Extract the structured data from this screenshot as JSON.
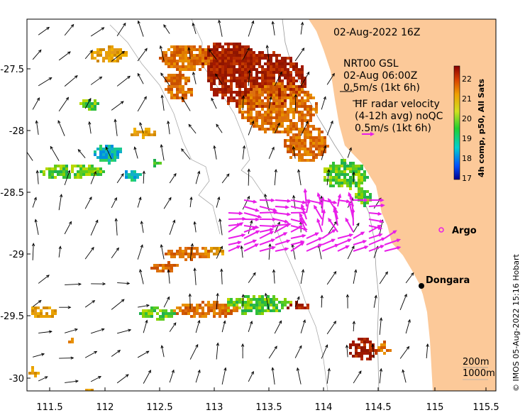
{
  "title": "02-Aug-2022 16Z",
  "gsl_legend": {
    "line1": "NRT00 GSL",
    "line2": "02-Aug 06:00Z",
    "line3": "0.5m/s (1kt 6h)"
  },
  "hf_legend": {
    "line1": "HF radar velocity",
    "line2": "(4-12h avg) noQC",
    "line3": "0.5m/s (1kt 6h)"
  },
  "colorbar": {
    "label": "4h comp, p50, All Sats",
    "ticks": [
      "22",
      "21",
      "20",
      "19",
      "18",
      "17"
    ]
  },
  "axes": {
    "x_ticks": [
      "111.5",
      "112",
      "112.5",
      "113",
      "113.5",
      "114",
      "114.5",
      "115",
      "115.5"
    ],
    "y_ticks": [
      "-27.5",
      "-28",
      "-28.5",
      "-29",
      "-29.5",
      "-30"
    ]
  },
  "places": {
    "argo": "Argo",
    "dongara": "Dongara"
  },
  "depth_legend": {
    "d200": "200m",
    "d1000": "1000m"
  },
  "footer": "© IMOS 05-Aug-2022 15:16 Hobart",
  "colors": {
    "land": "#fcc999",
    "hf_arrow": "#e81ee8",
    "gsl_arrow": "#000000",
    "sst_hot": "#a31800",
    "sst_cool": "#1fc54a"
  }
}
